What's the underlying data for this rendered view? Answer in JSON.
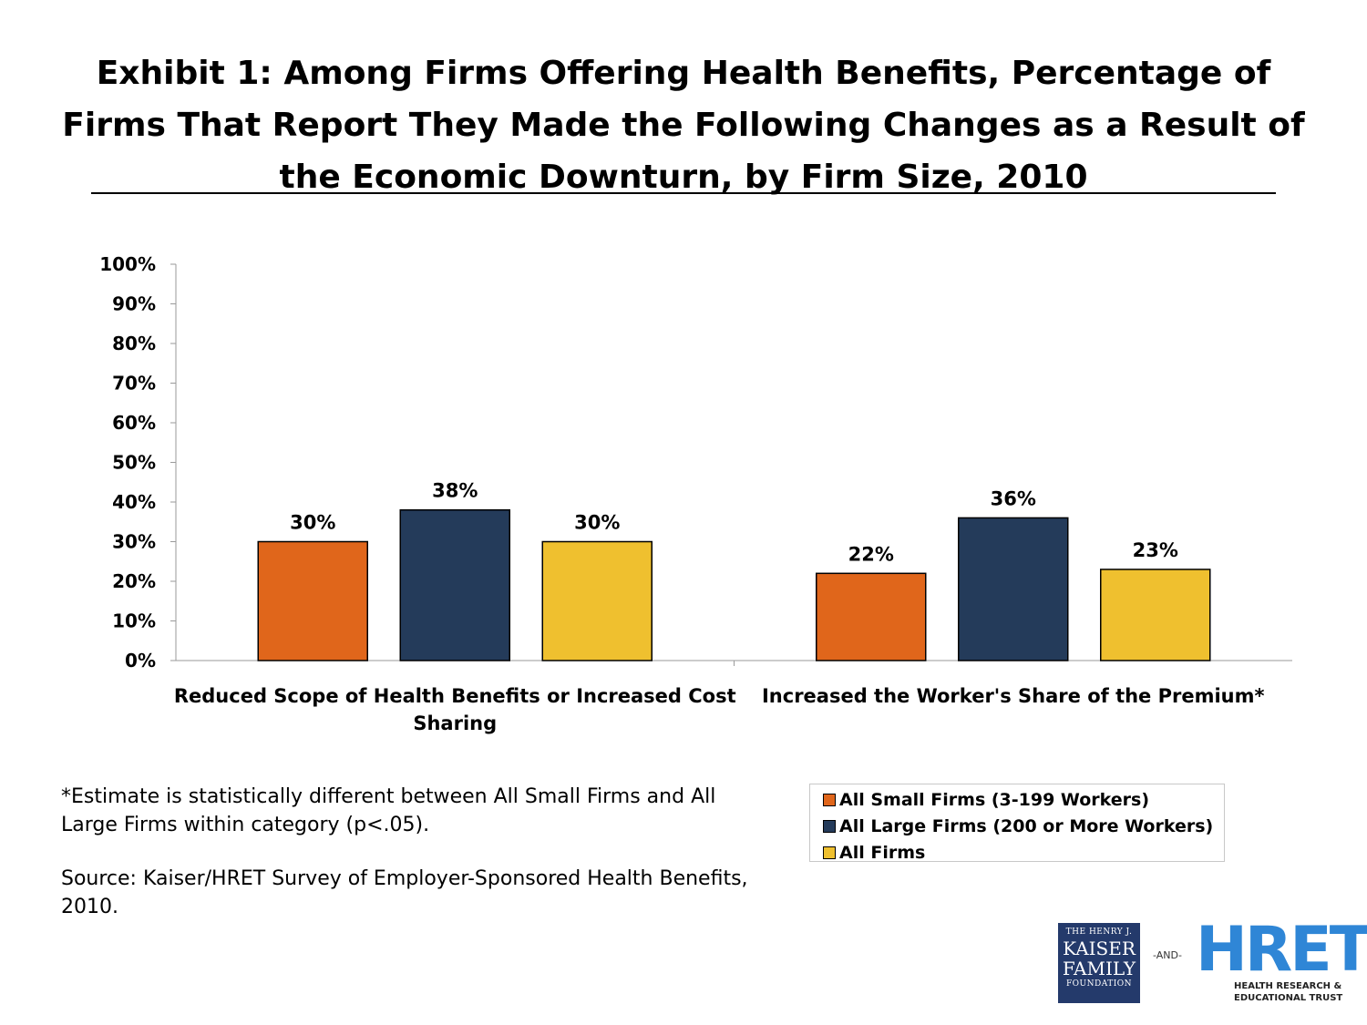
{
  "title": "Exhibit 1: Among Firms Offering Health Benefits, Percentage of Firms That Report They Made the Following Changes as a Result of the Economic Downturn, by Firm Size, 2010",
  "chart_data": {
    "type": "bar",
    "categories": [
      [
        "Reduced Scope of Health Benefits or Increased Cost",
        "Sharing"
      ],
      [
        "Increased the Worker's Share of the Premium*"
      ]
    ],
    "series": [
      {
        "name": "All Small Firms (3-199 Workers)",
        "color": "#e0661b",
        "values": [
          30,
          22
        ]
      },
      {
        "name": "All Large Firms (200 or More Workers)",
        "color": "#243b5a",
        "values": [
          38,
          36
        ]
      },
      {
        "name": "All Firms",
        "color": "#efc02f",
        "values": [
          30,
          23
        ]
      }
    ],
    "data_labels": [
      [
        "30%",
        "22%"
      ],
      [
        "38%",
        "36%"
      ],
      [
        "30%",
        "23%"
      ]
    ],
    "ylim": [
      0,
      100
    ],
    "yticks": [
      "0%",
      "10%",
      "20%",
      "30%",
      "40%",
      "50%",
      "60%",
      "70%",
      "80%",
      "90%",
      "100%"
    ],
    "grid": false,
    "legend_position": "bottom-right"
  },
  "footnotes": {
    "stat": "*Estimate is statistically different between All Small Firms and All Large Firms within category (p<.05).",
    "source": "Source: Kaiser/HRET Survey of Employer-Sponsored Health Benefits, 2010."
  },
  "logos": {
    "kff": {
      "line1": "THE HENRY J.",
      "line2": "KAISER",
      "line3": "FAMILY",
      "line4": "FOUNDATION"
    },
    "and": "-AND-",
    "hret": {
      "mark": "HRET",
      "sub1": "HEALTH RESEARCH &",
      "sub2": "EDUCATIONAL TRUST"
    }
  }
}
